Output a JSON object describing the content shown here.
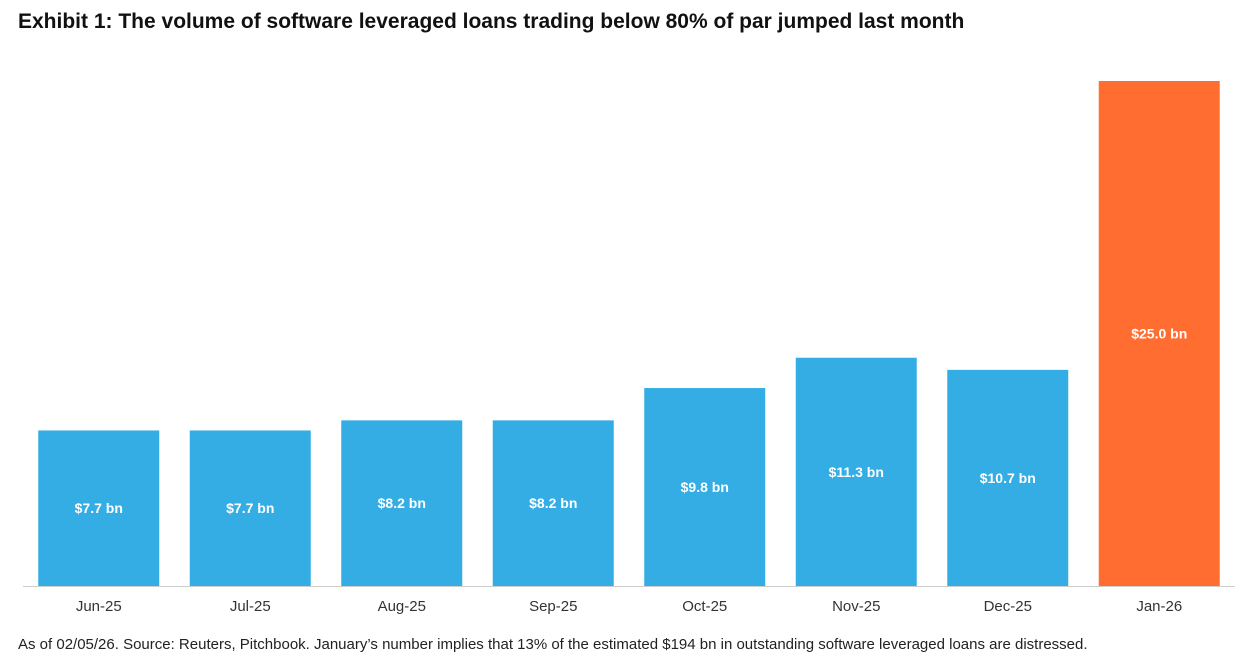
{
  "title": "Exhibit 1: The volume of software leveraged loans trading below 80% of par jumped last month",
  "footnote": "As of 02/05/26. Source: Reuters, Pitchbook. January’s number implies that 13% of the estimated $194 bn in outstanding software leveraged loans are distressed.",
  "colors": {
    "bar": "#33ADE4",
    "highlight": "#FF6E30",
    "axis": "#CCCCCC",
    "label": "#FFFFFF",
    "tick": "#333333"
  },
  "chart_data": {
    "type": "bar",
    "categories": [
      "Jun-25",
      "Jul-25",
      "Aug-25",
      "Sep-25",
      "Oct-25",
      "Nov-25",
      "Dec-25",
      "Jan-26"
    ],
    "values": [
      7.7,
      7.7,
      8.2,
      8.2,
      9.8,
      11.3,
      10.7,
      25.0
    ],
    "data_labels": [
      "$7.7 bn",
      "$7.7 bn",
      "$8.2 bn",
      "$8.2 bn",
      "$9.8 bn",
      "$11.3 bn",
      "$10.7 bn",
      "$25.0 bn"
    ],
    "highlight_index": 7,
    "title": "Exhibit 1: The volume of software leveraged loans trading below 80% of par jumped last month",
    "xlabel": "",
    "ylabel": "",
    "ylim": [
      0,
      25
    ],
    "grid": false,
    "legend": "none"
  }
}
